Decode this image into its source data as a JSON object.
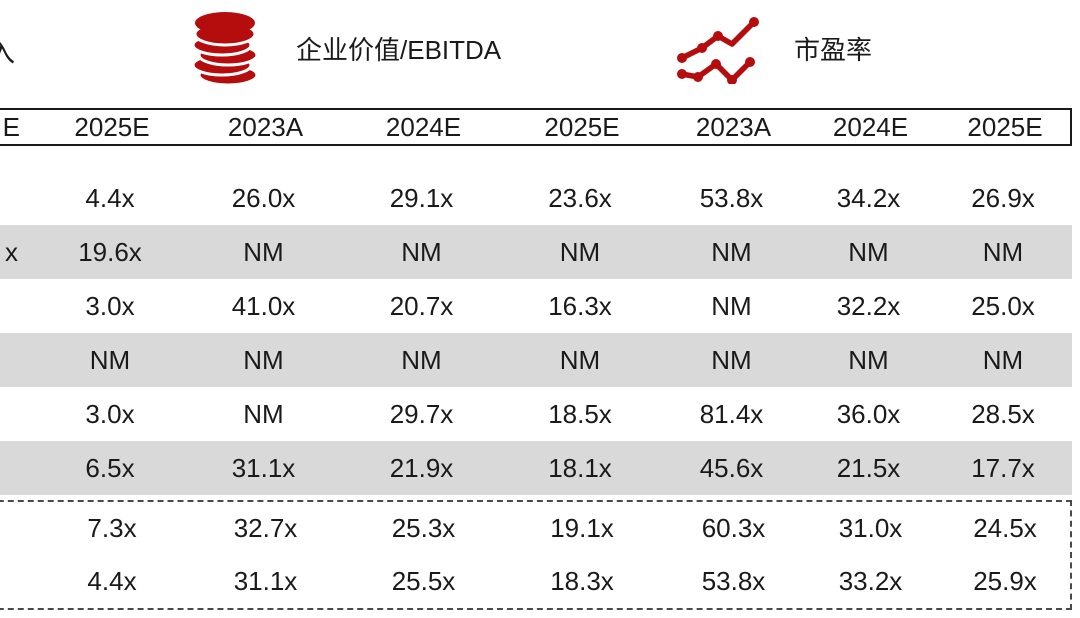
{
  "page": {
    "background": "#ffffff",
    "accent_red": "#b50d0d",
    "stripe_gray": "#d9d9d9",
    "text_color": "#1a1a1a"
  },
  "legend": {
    "cut_label_fragment": "入",
    "items": [
      {
        "icon": "coins-icon",
        "label": "企业价值/EBITDA"
      },
      {
        "icon": "line-chart-icon",
        "label": "市盈率"
      }
    ]
  },
  "table": {
    "column_headers": [
      "E",
      "2025E",
      "2023A",
      "2024E",
      "2025E",
      "2023A",
      "2024E",
      "2025E"
    ],
    "rows": [
      [
        "",
        "4.4x",
        "26.0x",
        "29.1x",
        "23.6x",
        "53.8x",
        "34.2x",
        "26.9x"
      ],
      [
        "x",
        "19.6x",
        "NM",
        "NM",
        "NM",
        "NM",
        "NM",
        "NM"
      ],
      [
        "",
        "3.0x",
        "41.0x",
        "20.7x",
        "16.3x",
        "NM",
        "32.2x",
        "25.0x"
      ],
      [
        "",
        "NM",
        "NM",
        "NM",
        "NM",
        "NM",
        "NM",
        "NM"
      ],
      [
        "",
        "3.0x",
        "NM",
        "29.7x",
        "18.5x",
        "81.4x",
        "36.0x",
        "28.5x"
      ],
      [
        "",
        "6.5x",
        "31.1x",
        "21.9x",
        "18.1x",
        "45.6x",
        "21.5x",
        "17.7x"
      ]
    ],
    "summary_rows": [
      [
        "",
        "7.3x",
        "32.7x",
        "25.3x",
        "19.1x",
        "60.3x",
        "31.0x",
        "24.5x"
      ],
      [
        "",
        "4.4x",
        "31.1x",
        "25.5x",
        "18.3x",
        "53.8x",
        "33.2x",
        "25.9x"
      ]
    ]
  }
}
